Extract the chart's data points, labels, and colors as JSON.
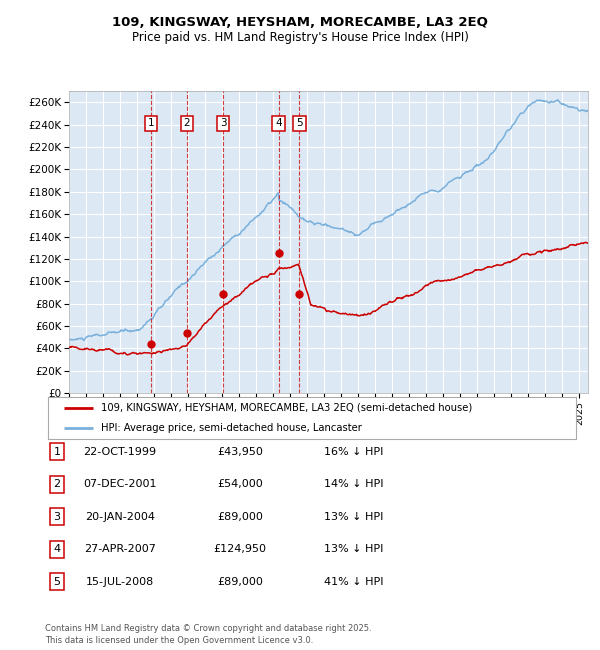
{
  "title1": "109, KINGSWAY, HEYSHAM, MORECAMBE, LA3 2EQ",
  "title2": "Price paid vs. HM Land Registry's House Price Index (HPI)",
  "ylabel_ticks": [
    "£0",
    "£20K",
    "£40K",
    "£60K",
    "£80K",
    "£100K",
    "£120K",
    "£140K",
    "£160K",
    "£180K",
    "£200K",
    "£220K",
    "£240K",
    "£260K"
  ],
  "ytick_values": [
    0,
    20000,
    40000,
    60000,
    80000,
    100000,
    120000,
    140000,
    160000,
    180000,
    200000,
    220000,
    240000,
    260000
  ],
  "ylim": [
    0,
    270000
  ],
  "plot_bg_color": "#dce9f5",
  "grid_color": "#ffffff",
  "hpi_color": "#7ab0dc",
  "price_color": "#cc0000",
  "sale_dates": [
    1999.81,
    2001.93,
    2004.05,
    2007.32,
    2008.54
  ],
  "sale_prices": [
    43950,
    54000,
    89000,
    124950,
    89000
  ],
  "sale_labels": [
    "1",
    "2",
    "3",
    "4",
    "5"
  ],
  "legend_label_price": "109, KINGSWAY, HEYSHAM, MORECAMBE, LA3 2EQ (semi-detached house)",
  "legend_label_hpi": "HPI: Average price, semi-detached house, Lancaster",
  "table_rows": [
    [
      "1",
      "22-OCT-1999",
      "£43,950",
      "16% ↓ HPI"
    ],
    [
      "2",
      "07-DEC-2001",
      "£54,000",
      "14% ↓ HPI"
    ],
    [
      "3",
      "20-JAN-2004",
      "£89,000",
      "13% ↓ HPI"
    ],
    [
      "4",
      "27-APR-2007",
      "£124,950",
      "13% ↓ HPI"
    ],
    [
      "5",
      "15-JUL-2008",
      "£89,000",
      "41% ↓ HPI"
    ]
  ],
  "footer": "Contains HM Land Registry data © Crown copyright and database right 2025.\nThis data is licensed under the Open Government Licence v3.0.",
  "xmin": 1995.0,
  "xmax": 2025.5
}
